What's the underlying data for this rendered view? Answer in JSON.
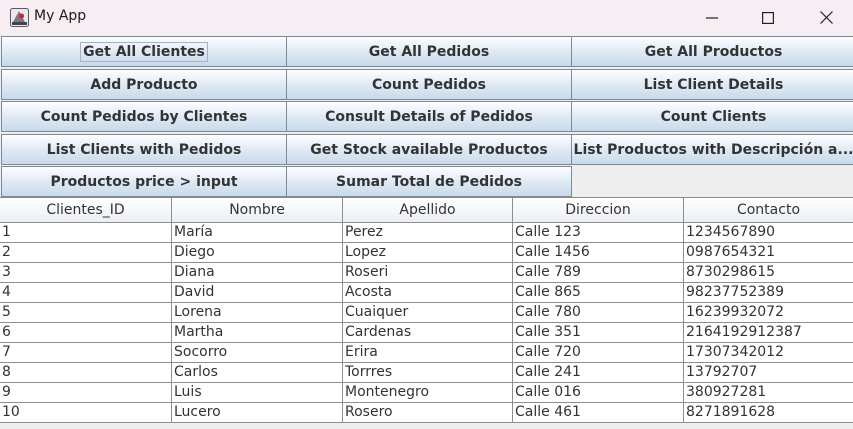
{
  "window": {
    "title": "My App",
    "minimize_icon": "minimize-icon",
    "maximize_icon": "maximize-icon",
    "close_icon": "close-icon"
  },
  "buttons": [
    {
      "label": "Get All Clientes"
    },
    {
      "label": "Get All Pedidos"
    },
    {
      "label": "Get All Productos"
    },
    {
      "label": "Add Producto"
    },
    {
      "label": "Count Pedidos"
    },
    {
      "label": "List Client Details"
    },
    {
      "label": "Count Pedidos by Clientes"
    },
    {
      "label": "Consult Details of Pedidos"
    },
    {
      "label": "Count Clients"
    },
    {
      "label": "List Clients with Pedidos"
    },
    {
      "label": "Get Stock available Productos"
    },
    {
      "label": "List Productos with Descripción a..."
    },
    {
      "label": "Productos price > input"
    },
    {
      "label": "Sumar Total de Pedidos"
    }
  ],
  "table": {
    "columns": [
      "Clientes_ID",
      "Nombre",
      "Apellido",
      "Direccion",
      "Contacto"
    ],
    "rows": [
      [
        "1",
        "María",
        "Perez",
        "Calle 123",
        "1234567890"
      ],
      [
        "2",
        "Diego",
        "Lopez",
        "Calle 1456",
        "0987654321"
      ],
      [
        "3",
        "Diana",
        "Roseri",
        "Calle 789",
        "8730298615"
      ],
      [
        "4",
        "David",
        "Acosta",
        "Calle 865",
        "98237752389"
      ],
      [
        "5",
        "Lorena",
        "Cuaiquer",
        "Calle 780",
        "16239932072"
      ],
      [
        "6",
        "Martha",
        "Cardenas",
        "Calle 351",
        "2164192912387"
      ],
      [
        "7",
        "Socorro",
        "Erira",
        "Calle 720",
        "17307342012"
      ],
      [
        "8",
        "Carlos",
        "Torrres",
        "Calle 241",
        "13792707"
      ],
      [
        "9",
        "Luis",
        "Montenegro",
        "Calle 016",
        "380927281"
      ],
      [
        "10",
        "Lucero",
        "Rosero",
        "Calle 461",
        "8271891628"
      ]
    ]
  }
}
